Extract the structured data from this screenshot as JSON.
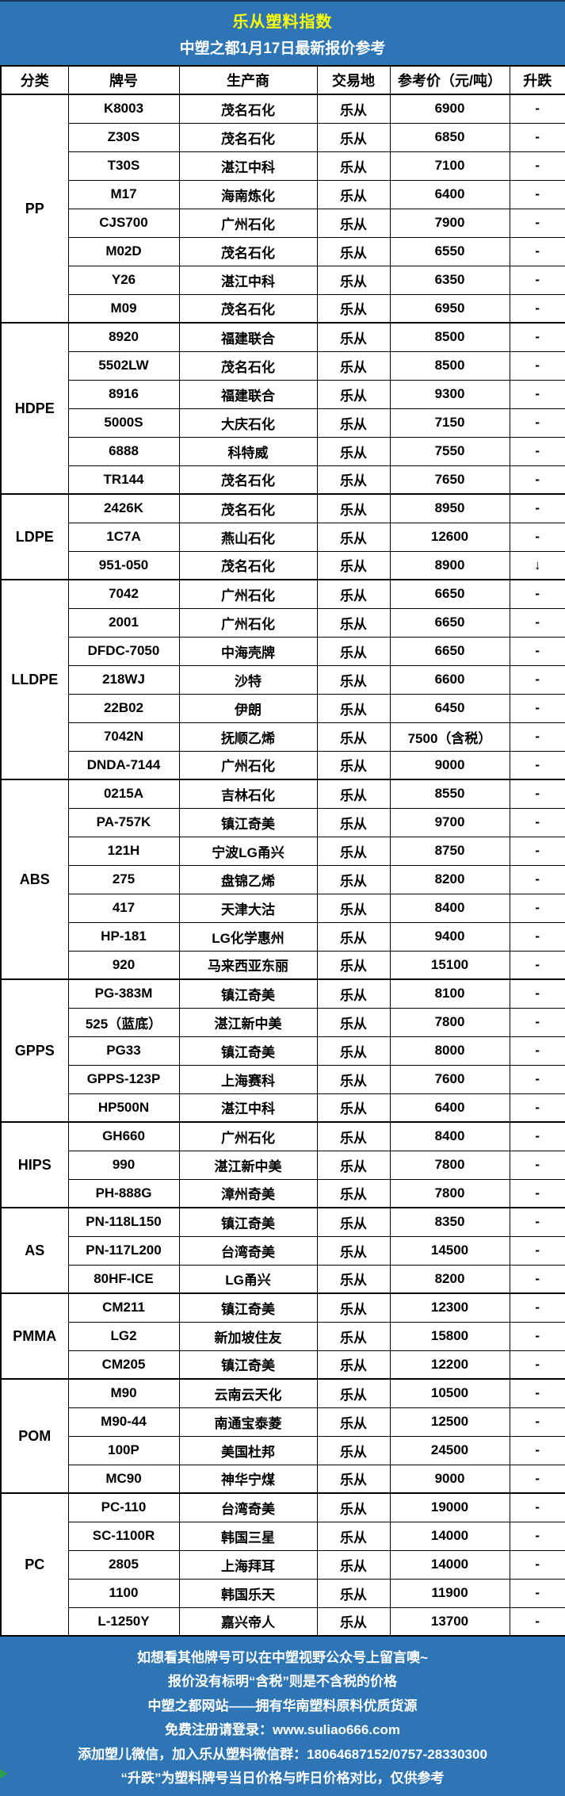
{
  "colors": {
    "banner_blue": "#2E75B6",
    "title_yellow": "#FFFF00",
    "border_black": "#000000",
    "footer_text_white": "#FFFFFF",
    "artifact_green": "#2E9E4F"
  },
  "banner": {
    "title": "乐从塑料指数",
    "subtitle": "中塑之都1月17日最新报价参考"
  },
  "table": {
    "columns": [
      "分类",
      "牌号",
      "生产商",
      "交易地",
      "参考价（元/吨）",
      "升跌"
    ],
    "groups": [
      {
        "category": "PP",
        "rows": [
          {
            "grade": "K8003",
            "producer": "茂名石化",
            "market": "乐从",
            "price": "6900",
            "change": "-"
          },
          {
            "grade": "Z30S",
            "producer": "茂名石化",
            "market": "乐从",
            "price": "6850",
            "change": "-"
          },
          {
            "grade": "T30S",
            "producer": "湛江中科",
            "market": "乐从",
            "price": "7100",
            "change": "-"
          },
          {
            "grade": "M17",
            "producer": "海南炼化",
            "market": "乐从",
            "price": "6400",
            "change": "-"
          },
          {
            "grade": "CJS700",
            "producer": "广州石化",
            "market": "乐从",
            "price": "7900",
            "change": "-"
          },
          {
            "grade": "M02D",
            "producer": "茂名石化",
            "market": "乐从",
            "price": "6550",
            "change": "-"
          },
          {
            "grade": "Y26",
            "producer": "湛江中科",
            "market": "乐从",
            "price": "6350",
            "change": "-"
          },
          {
            "grade": "M09",
            "producer": "茂名石化",
            "market": "乐从",
            "price": "6950",
            "change": "-"
          }
        ]
      },
      {
        "category": "HDPE",
        "rows": [
          {
            "grade": "8920",
            "producer": "福建联合",
            "market": "乐从",
            "price": "8500",
            "change": "-"
          },
          {
            "grade": "5502LW",
            "producer": "茂名石化",
            "market": "乐从",
            "price": "8500",
            "change": "-"
          },
          {
            "grade": "8916",
            "producer": "福建联合",
            "market": "乐从",
            "price": "9300",
            "change": "-"
          },
          {
            "grade": "5000S",
            "producer": "大庆石化",
            "market": "乐从",
            "price": "7150",
            "change": "-"
          },
          {
            "grade": "6888",
            "producer": "科特威",
            "market": "乐从",
            "price": "7550",
            "change": "-"
          },
          {
            "grade": "TR144",
            "producer": "茂名石化",
            "market": "乐从",
            "price": "7650",
            "change": "-"
          }
        ]
      },
      {
        "category": "LDPE",
        "rows": [
          {
            "grade": "2426K",
            "producer": "茂名石化",
            "market": "乐从",
            "price": "8950",
            "change": "-"
          },
          {
            "grade": "1C7A",
            "producer": "燕山石化",
            "market": "乐从",
            "price": "12600",
            "change": "-"
          },
          {
            "grade": "951-050",
            "producer": "茂名石化",
            "market": "乐从",
            "price": "8900",
            "change": "↓"
          }
        ]
      },
      {
        "category": "LLDPE",
        "rows": [
          {
            "grade": "7042",
            "producer": "广州石化",
            "market": "乐从",
            "price": "6650",
            "change": "-"
          },
          {
            "grade": "2001",
            "producer": "广州石化",
            "market": "乐从",
            "price": "6650",
            "change": "-"
          },
          {
            "grade": "DFDC-7050",
            "producer": "中海壳牌",
            "market": "乐从",
            "price": "6650",
            "change": "-"
          },
          {
            "grade": "218WJ",
            "producer": "沙特",
            "market": "乐从",
            "price": "6600",
            "change": "-"
          },
          {
            "grade": "22B02",
            "producer": "伊朗",
            "market": "乐从",
            "price": "6450",
            "change": "-"
          },
          {
            "grade": "7042N",
            "producer": "抚顺乙烯",
            "market": "乐从",
            "price": "7500（含税）",
            "change": "-"
          },
          {
            "grade": "DNDA-7144",
            "producer": "广州石化",
            "market": "乐从",
            "price": "9000",
            "change": "-"
          }
        ]
      },
      {
        "category": "ABS",
        "rows": [
          {
            "grade": "0215A",
            "producer": "吉林石化",
            "market": "乐从",
            "price": "8550",
            "change": "-"
          },
          {
            "grade": "PA-757K",
            "producer": "镇江奇美",
            "market": "乐从",
            "price": "9700",
            "change": "-"
          },
          {
            "grade": "121H",
            "producer": "宁波LG甬兴",
            "market": "乐从",
            "price": "8750",
            "change": "-"
          },
          {
            "grade": "275",
            "producer": "盘锦乙烯",
            "market": "乐从",
            "price": "8200",
            "change": "-"
          },
          {
            "grade": "417",
            "producer": "天津大沽",
            "market": "乐从",
            "price": "8400",
            "change": "-"
          },
          {
            "grade": "HP-181",
            "producer": "LG化学惠州",
            "market": "乐从",
            "price": "9400",
            "change": "-"
          },
          {
            "grade": "920",
            "producer": "马来西亚东丽",
            "market": "乐从",
            "price": "15100",
            "change": "-"
          }
        ]
      },
      {
        "category": "GPPS",
        "rows": [
          {
            "grade": "PG-383M",
            "producer": "镇江奇美",
            "market": "乐从",
            "price": "8100",
            "change": "-"
          },
          {
            "grade": "525（蓝底）",
            "producer": "湛江新中美",
            "market": "乐从",
            "price": "7800",
            "change": "-"
          },
          {
            "grade": "PG33",
            "producer": "镇江奇美",
            "market": "乐从",
            "price": "8000",
            "change": "-"
          },
          {
            "grade": "GPPS-123P",
            "producer": "上海赛科",
            "market": "乐从",
            "price": "7600",
            "change": "-"
          },
          {
            "grade": "HP500N",
            "producer": "湛江中科",
            "market": "乐从",
            "price": "6400",
            "change": "-"
          }
        ]
      },
      {
        "category": "HIPS",
        "rows": [
          {
            "grade": "GH660",
            "producer": "广州石化",
            "market": "乐从",
            "price": "8400",
            "change": "-"
          },
          {
            "grade": "990",
            "producer": "湛江新中美",
            "market": "乐从",
            "price": "7800",
            "change": "-"
          },
          {
            "grade": "PH-888G",
            "producer": "漳州奇美",
            "market": "乐从",
            "price": "7800",
            "change": "-"
          }
        ]
      },
      {
        "category": "AS",
        "rows": [
          {
            "grade": "PN-118L150",
            "producer": "镇江奇美",
            "market": "乐从",
            "price": "8350",
            "change": "-"
          },
          {
            "grade": "PN-117L200",
            "producer": "台湾奇美",
            "market": "乐从",
            "price": "14500",
            "change": "-"
          },
          {
            "grade": "80HF-ICE",
            "producer": "LG甬兴",
            "market": "乐从",
            "price": "8200",
            "change": "-"
          }
        ]
      },
      {
        "category": "PMMA",
        "rows": [
          {
            "grade": "CM211",
            "producer": "镇江奇美",
            "market": "乐从",
            "price": "12300",
            "change": "-"
          },
          {
            "grade": "LG2",
            "producer": "新加坡住友",
            "market": "乐从",
            "price": "15800",
            "change": "-"
          },
          {
            "grade": "CM205",
            "producer": "镇江奇美",
            "market": "乐从",
            "price": "12200",
            "change": "-"
          }
        ]
      },
      {
        "category": "POM",
        "rows": [
          {
            "grade": "M90",
            "producer": "云南云天化",
            "market": "乐从",
            "price": "10500",
            "change": "-"
          },
          {
            "grade": "M90-44",
            "producer": "南通宝泰菱",
            "market": "乐从",
            "price": "12500",
            "change": "-"
          },
          {
            "grade": "100P",
            "producer": "美国杜邦",
            "market": "乐从",
            "price": "24500",
            "change": "-"
          },
          {
            "grade": "MC90",
            "producer": "神华宁煤",
            "market": "乐从",
            "price": "9000",
            "change": "-"
          }
        ]
      },
      {
        "category": "PC",
        "rows": [
          {
            "grade": "PC-110",
            "producer": "台湾奇美",
            "market": "乐从",
            "price": "19000",
            "change": "-"
          },
          {
            "grade": "SC-1100R",
            "producer": "韩国三星",
            "market": "乐从",
            "price": "14000",
            "change": "-"
          },
          {
            "grade": "2805",
            "producer": "上海拜耳",
            "market": "乐从",
            "price": "14000",
            "change": "-"
          },
          {
            "grade": "1100",
            "producer": "韩国乐天",
            "market": "乐从",
            "price": "11900",
            "change": "-"
          },
          {
            "grade": "L-1250Y",
            "producer": "嘉兴帝人",
            "market": "乐从",
            "price": "13700",
            "change": "-"
          }
        ]
      }
    ]
  },
  "footer": {
    "lines": [
      "如想看其他牌号可以在中塑视野公众号上留言噢~",
      "报价没有标明“含税”则是不含税的价格",
      "中塑之都网站——拥有华南塑料原料优质货源",
      "免费注册请登录：www.suliao666.com",
      "添加塑儿微信，加入乐从塑料微信群：18064687152/0757-28330300",
      "“升跌”为塑料牌号当日价格与昨日价格对比，仅供参考"
    ]
  }
}
